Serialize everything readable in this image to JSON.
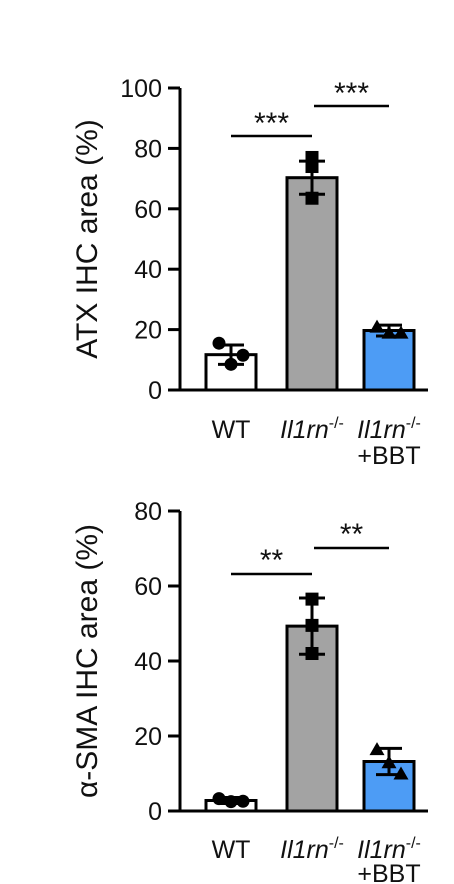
{
  "chart_data": [
    {
      "type": "bar",
      "categories": [
        "WT",
        "Il1rn-/-",
        "Il1rn-/-+BBT"
      ],
      "category_labels": [
        {
          "line1": "WT",
          "line1_italic": false,
          "sup": "",
          "line2": ""
        },
        {
          "line1": "Il1rn",
          "line1_italic": true,
          "sup": "-/-",
          "line2": ""
        },
        {
          "line1": "Il1rn",
          "line1_italic": true,
          "sup": "-/-",
          "line2": "+BBT"
        }
      ],
      "values": [
        11.7,
        70.3,
        19.7
      ],
      "error": [
        3.2,
        5.5,
        1.8
      ],
      "points": [
        [
          15.5,
          8.5,
          11.5
        ],
        [
          77,
          74,
          63.5
        ],
        [
          21,
          19,
          19
        ]
      ],
      "markers": [
        "circle",
        "square",
        "triangle"
      ],
      "bar_colors": [
        "#ffffff",
        "#a3a3a3",
        "#4d9cf5"
      ],
      "ylabel": "ATX IHC area (%)",
      "ylim": [
        0,
        100
      ],
      "yticks": [
        0,
        20,
        40,
        60,
        80,
        100
      ],
      "significance": [
        {
          "from": 0,
          "to": 1,
          "label": "***"
        },
        {
          "from": 1,
          "to": 2,
          "label": "***"
        }
      ]
    },
    {
      "type": "bar",
      "categories": [
        "WT",
        "Il1rn-/-",
        "Il1rn-/-+BBT"
      ],
      "category_labels": [
        {
          "line1": "WT",
          "line1_italic": false,
          "sup": "",
          "line2": ""
        },
        {
          "line1": "Il1rn",
          "line1_italic": true,
          "sup": "-/-",
          "line2": ""
        },
        {
          "line1": "Il1rn",
          "line1_italic": true,
          "sup": "-/-",
          "line2": "+BBT"
        }
      ],
      "values": [
        2.8,
        49.3,
        13.2
      ],
      "error": [
        0.8,
        7.5,
        3.5
      ],
      "points": [
        [
          3.3,
          2.5,
          2.6
        ],
        [
          56.5,
          49.5,
          42
        ],
        [
          16.5,
          13,
          10
        ]
      ],
      "markers": [
        "circle",
        "square",
        "triangle"
      ],
      "bar_colors": [
        "#ffffff",
        "#a3a3a3",
        "#4d9cf5"
      ],
      "ylabel": "α-SMA IHC area (%)",
      "ylim": [
        0,
        80
      ],
      "yticks": [
        0,
        20,
        40,
        60,
        80
      ],
      "significance": [
        {
          "from": 0,
          "to": 1,
          "label": "**"
        },
        {
          "from": 1,
          "to": 2,
          "label": "**"
        }
      ]
    }
  ]
}
